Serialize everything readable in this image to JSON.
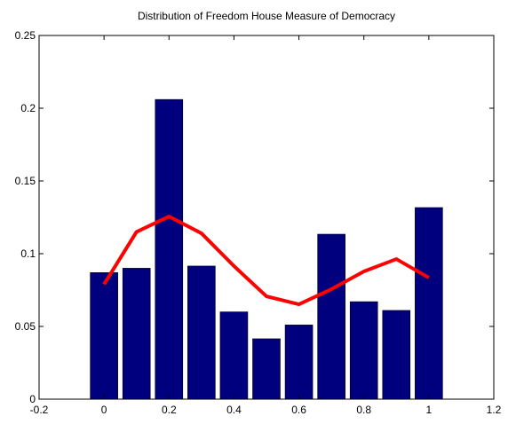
{
  "chart_data": {
    "type": "bar",
    "title": "Distribution of Freedom House Measure of Democracy",
    "x": [
      0,
      0.1,
      0.2,
      0.3,
      0.4,
      0.5,
      0.6,
      0.7,
      0.8,
      0.9,
      1
    ],
    "series": [
      {
        "type": "bar",
        "color": "#00007f",
        "values": [
          0.087,
          0.09,
          0.206,
          0.0915,
          0.06,
          0.0415,
          0.051,
          0.1134,
          0.067,
          0.061,
          0.1317
        ]
      },
      {
        "type": "line",
        "color": "#ff0000",
        "values": [
          0.079,
          0.115,
          0.1256,
          0.114,
          0.0915,
          0.0707,
          0.0652,
          0.0756,
          0.0878,
          0.0963,
          0.0835
        ]
      }
    ],
    "xlim": [
      -0.2,
      1.2
    ],
    "xticks": [
      -0.2,
      0,
      0.2,
      0.4,
      0.6,
      0.8,
      1,
      1.2
    ],
    "ylim": [
      0,
      0.25
    ],
    "yticks": [
      0,
      0.05,
      0.1,
      0.15,
      0.2,
      0.25
    ],
    "grid": false
  }
}
